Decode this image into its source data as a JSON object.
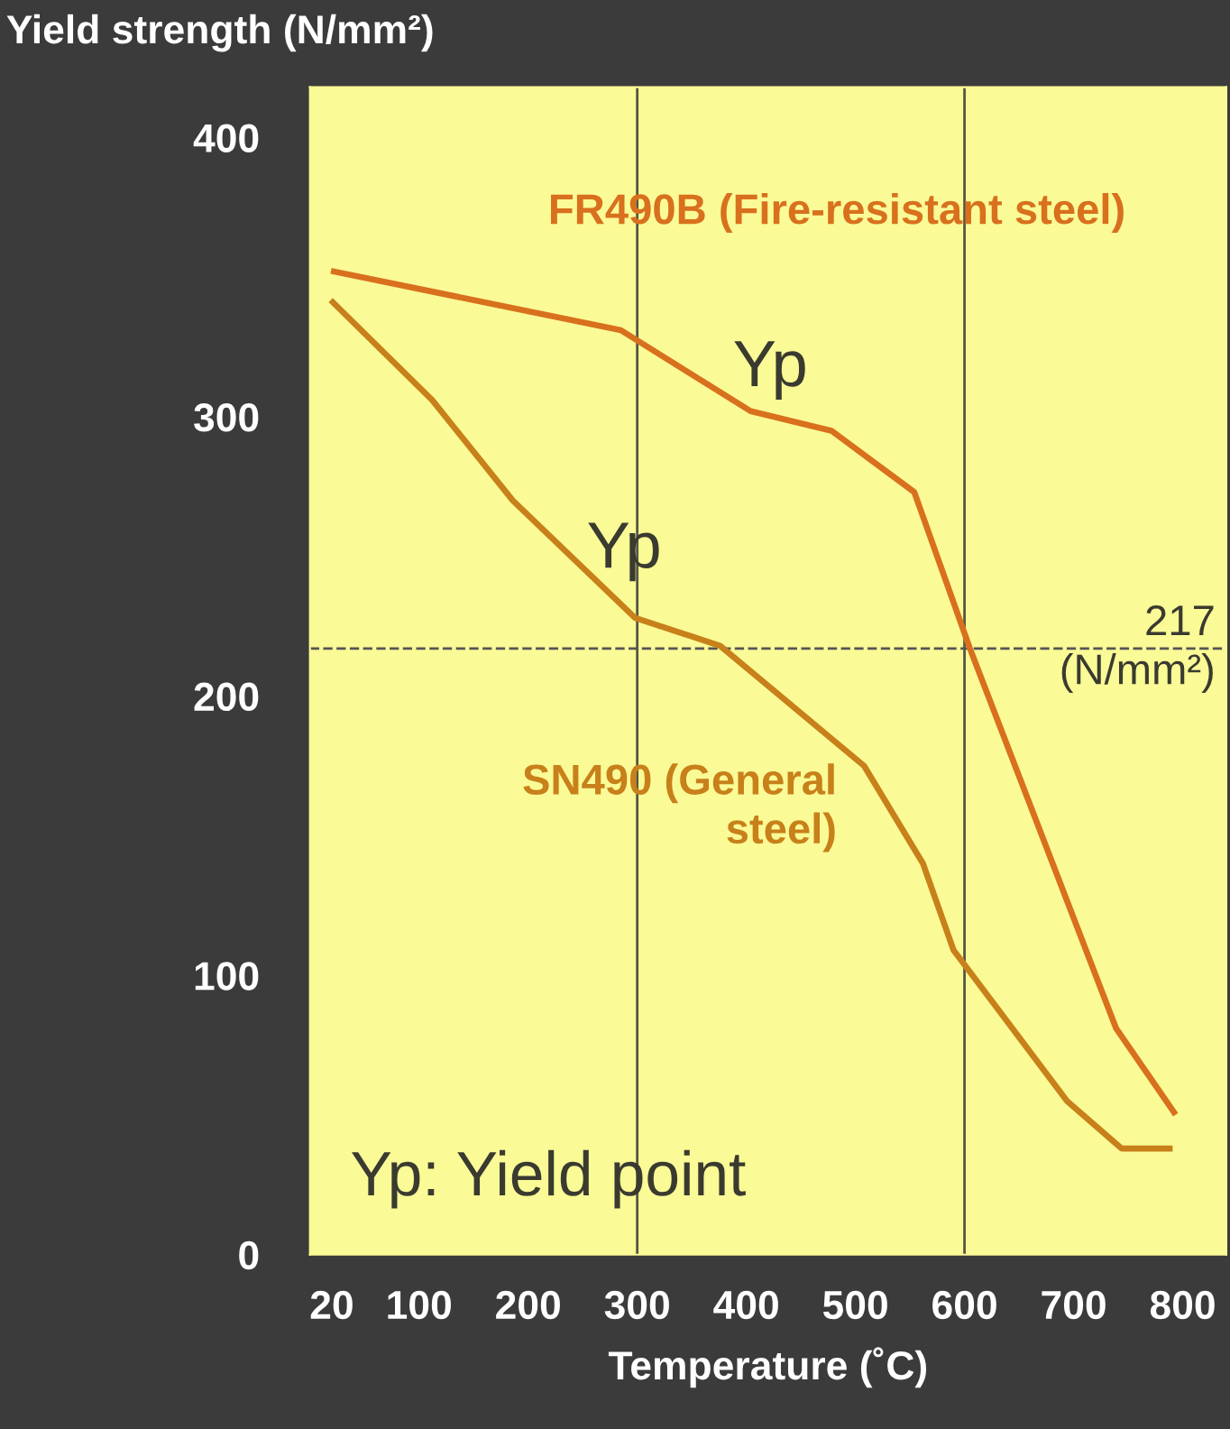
{
  "chart_data": {
    "type": "line",
    "ylabel": "Yield strength (N/mm²)",
    "xlabel": "Temperature (˚C)",
    "xlim": [
      0,
      840
    ],
    "xticks": [
      20,
      100,
      200,
      300,
      400,
      500,
      600,
      700,
      800
    ],
    "ylim": [
      0,
      418
    ],
    "yticks": [
      0,
      100,
      200,
      300,
      400
    ],
    "grid": false,
    "legend": false,
    "marker": "none",
    "line_style": "solid",
    "series": [
      {
        "name": "FR490B (Fire-resistant steel)",
        "color": "#d8701e",
        "x": [
          22,
          285,
          404,
          478,
          554,
          605,
          739,
          792
        ],
        "values": [
          352,
          331,
          302,
          295,
          273,
          217,
          81,
          51
        ]
      },
      {
        "name": "SN490 (General\nsteel)",
        "color": "#c8801a",
        "x": [
          21,
          112,
          186,
          298,
          376,
          508,
          562,
          590,
          694,
          744,
          788
        ],
        "values": [
          341,
          306,
          270,
          228,
          218,
          175,
          140,
          109,
          55,
          38,
          38
        ]
      }
    ],
    "ref_lines": [
      {
        "axis": "y",
        "value": 217,
        "label": "217\n(N/mm²)",
        "color": "#555555",
        "line_style": "dashed"
      },
      {
        "axis": "x",
        "value": 300,
        "color": "#555544",
        "line_style": "solid"
      },
      {
        "axis": "x",
        "value": 600,
        "color": "#555544",
        "line_style": "solid"
      }
    ],
    "annotations": [
      "Yp",
      "Yp",
      "Yp: Yield point"
    ]
  }
}
